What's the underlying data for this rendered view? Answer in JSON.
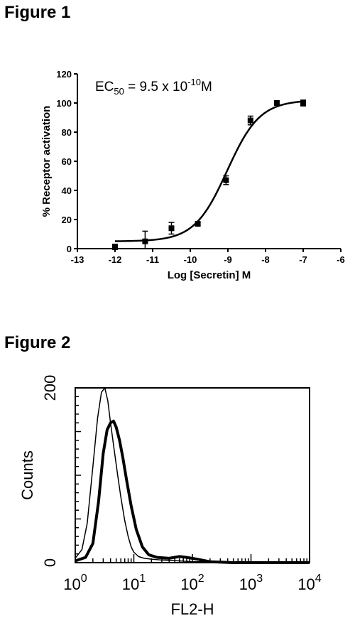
{
  "figure1": {
    "label": "Figure 1",
    "chart_data": {
      "type": "scatter",
      "annotation": {
        "prefix": "EC",
        "sub": "50",
        "mid": " = 9.5 x 10",
        "sup": "-10",
        "suffix": "M"
      },
      "xlabel": "Log [Secretin] M",
      "ylabel": "% Receptor activation",
      "xlim": [
        -13,
        -6
      ],
      "ylim": [
        0,
        120
      ],
      "xticks": [
        -13,
        -12,
        -11,
        -10,
        -9,
        -8,
        -7,
        -6
      ],
      "yticks": [
        0,
        20,
        40,
        60,
        80,
        100,
        120
      ],
      "series": [
        {
          "x": [
            -12,
            -11.2,
            -10.5,
            -9.8,
            -9.05,
            -8.4,
            -7.7,
            -7
          ],
          "y": [
            1,
            5,
            14,
            17,
            47,
            88,
            100,
            100
          ],
          "err": [
            2,
            7,
            4,
            1,
            3,
            3,
            1,
            2
          ]
        }
      ],
      "fit": {
        "bottom": 5,
        "top": 102,
        "logEC50": -9.02,
        "hill": 1.0
      }
    }
  },
  "figure2": {
    "label": "Figure 2",
    "chart_data": {
      "type": "line",
      "xlabel": "FL2-H",
      "ylabel": "Counts",
      "xscale": "log",
      "xlim": [
        1,
        10000
      ],
      "ylim": [
        0,
        200
      ],
      "xtick_base": "10",
      "xtick_exps": [
        "0",
        "1",
        "2",
        "3",
        "4"
      ],
      "ytick_labels": [
        "0",
        "200"
      ],
      "series": [
        {
          "style": "thin",
          "x": [
            1,
            1.3,
            1.6,
            2,
            2.4,
            2.8,
            3.2,
            3.6,
            4,
            4.6,
            5.3,
            6,
            7,
            8,
            9,
            10,
            12,
            15,
            20,
            30,
            60,
            100,
            200,
            500,
            10000
          ],
          "y": [
            5,
            15,
            45,
            110,
            165,
            195,
            200,
            185,
            160,
            130,
            100,
            75,
            48,
            30,
            18,
            12,
            7,
            5,
            4,
            3,
            2,
            1,
            1,
            0,
            0
          ]
        },
        {
          "style": "thick",
          "x": [
            1,
            1.5,
            2,
            2.5,
            3,
            3.5,
            4,
            4.5,
            5,
            5.7,
            6.5,
            7.5,
            9,
            11,
            14,
            18,
            25,
            40,
            60,
            80,
            120,
            200,
            500,
            10000
          ],
          "y": [
            2,
            6,
            22,
            70,
            125,
            152,
            160,
            162,
            155,
            140,
            120,
            95,
            65,
            38,
            18,
            9,
            6,
            5,
            7,
            6,
            4,
            1,
            0,
            0
          ]
        }
      ]
    }
  }
}
